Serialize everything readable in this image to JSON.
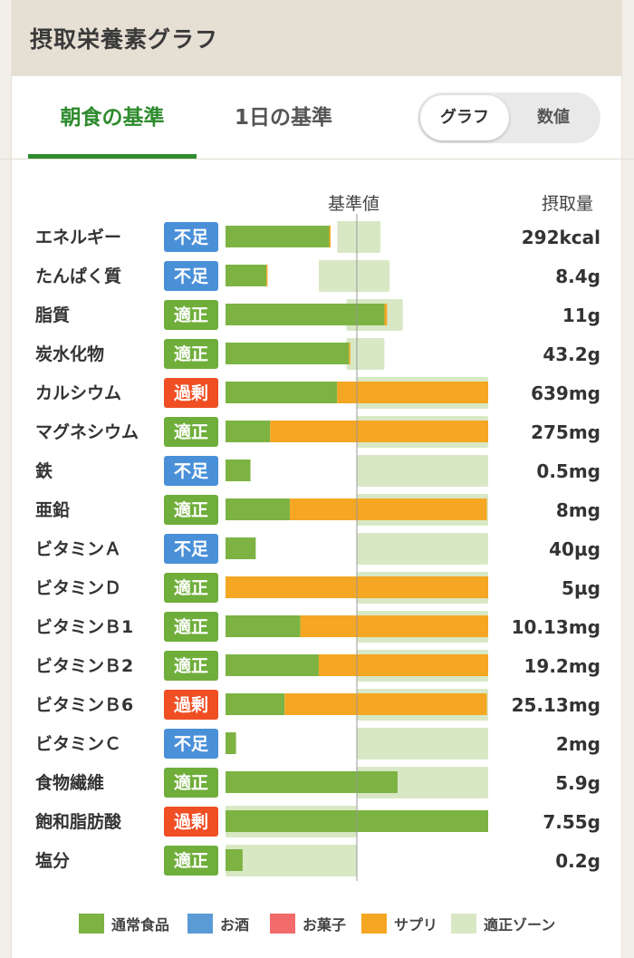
{
  "header": {
    "title": "摂取栄養素グラフ"
  },
  "tabs": [
    {
      "label": "朝食の基準",
      "active": true
    },
    {
      "label": "1日の基準",
      "active": false
    }
  ],
  "view_toggle": {
    "graph_label": "グラフ",
    "value_label": "数値",
    "selected": "グラフ"
  },
  "columns": {
    "standard": "基準値",
    "intake": "摂取量"
  },
  "colors": {
    "normal_food": "#7cb342",
    "alcohol": "#5a9bd5",
    "snack": "#f26a6a",
    "supplement": "#f5a623",
    "proper_zone": "#d8e8c5",
    "shortage": "#4a90d9",
    "proper": "#6fae3a",
    "excess": "#f04e23"
  },
  "legend": [
    {
      "label": "通常食品",
      "color_key": "normal_food"
    },
    {
      "label": "お酒",
      "color_key": "alcohol"
    },
    {
      "label": "お菓子",
      "color_key": "snack"
    },
    {
      "label": "サプリ",
      "color_key": "supplement"
    },
    {
      "label": "適正ゾーン",
      "color_key": "proper_zone"
    }
  ],
  "chart_data": {
    "type": "bar",
    "orientation": "horizontal",
    "stacked": true,
    "standard_ratio": 1.0,
    "max_ratio": 2.0,
    "series": [
      {
        "name": "通常食品",
        "color_key": "normal_food"
      },
      {
        "name": "サプリ",
        "color_key": "supplement"
      }
    ],
    "nutrients": [
      {
        "name": "エネルギー",
        "status": "不足",
        "intake": "292kcal",
        "food": 0.79,
        "supplement": 0.01,
        "zone": [
          0.85,
          1.18
        ]
      },
      {
        "name": "たんぱく質",
        "status": "不足",
        "intake": "8.4g",
        "food": 0.31,
        "supplement": 0.01,
        "zone": [
          0.71,
          1.25
        ]
      },
      {
        "name": "脂質",
        "status": "適正",
        "intake": "11g",
        "food": 1.21,
        "supplement": 0.02,
        "zone": [
          0.92,
          1.35
        ]
      },
      {
        "name": "炭水化物",
        "status": "適正",
        "intake": "43.2g",
        "food": 0.94,
        "supplement": 0.01,
        "zone": [
          0.92,
          1.21
        ]
      },
      {
        "name": "カルシウム",
        "status": "過剰",
        "intake": "639mg",
        "food": 0.85,
        "supplement": 1.15,
        "zone": [
          1.0,
          2.0
        ]
      },
      {
        "name": "マグネシウム",
        "status": "適正",
        "intake": "275mg",
        "food": 0.34,
        "supplement": 1.66,
        "zone": [
          1.0,
          2.0
        ]
      },
      {
        "name": "鉄",
        "status": "不足",
        "intake": "0.5mg",
        "food": 0.19,
        "supplement": 0.0,
        "zone": [
          1.0,
          2.0
        ]
      },
      {
        "name": "亜鉛",
        "status": "適正",
        "intake": "8mg",
        "food": 0.49,
        "supplement": 1.5,
        "zone": [
          1.0,
          2.0
        ]
      },
      {
        "name": "ビタミンＡ",
        "status": "不足",
        "intake": "40µg",
        "food": 0.23,
        "supplement": 0.0,
        "zone": [
          1.0,
          2.0
        ]
      },
      {
        "name": "ビタミンＤ",
        "status": "適正",
        "intake": "5µg",
        "food": 0.0,
        "supplement": 2.0,
        "zone": [
          1.0,
          2.0
        ]
      },
      {
        "name": "ビタミンＢ1",
        "status": "適正",
        "intake": "10.13mg",
        "food": 0.57,
        "supplement": 1.43,
        "zone": [
          1.0,
          2.0
        ]
      },
      {
        "name": "ビタミンＢ2",
        "status": "適正",
        "intake": "19.2mg",
        "food": 0.71,
        "supplement": 1.29,
        "zone": [
          1.0,
          2.0
        ]
      },
      {
        "name": "ビタミンＢ6",
        "status": "過剰",
        "intake": "25.13mg",
        "food": 0.45,
        "supplement": 1.54,
        "zone": [
          1.0,
          2.0
        ]
      },
      {
        "name": "ビタミンＣ",
        "status": "不足",
        "intake": "2mg",
        "food": 0.08,
        "supplement": 0.0,
        "zone": [
          1.0,
          2.0
        ]
      },
      {
        "name": "食物繊維",
        "status": "適正",
        "intake": "5.9g",
        "food": 1.31,
        "supplement": 0.0,
        "zone": [
          1.0,
          2.0
        ]
      },
      {
        "name": "飽和脂肪酸",
        "status": "過剰",
        "intake": "7.55g",
        "food": 2.0,
        "supplement": 0.0,
        "zone": [
          0.0,
          1.0
        ]
      },
      {
        "name": "塩分",
        "status": "適正",
        "intake": "0.2g",
        "food": 0.13,
        "supplement": 0.0,
        "zone": [
          0.0,
          1.0
        ]
      }
    ]
  }
}
